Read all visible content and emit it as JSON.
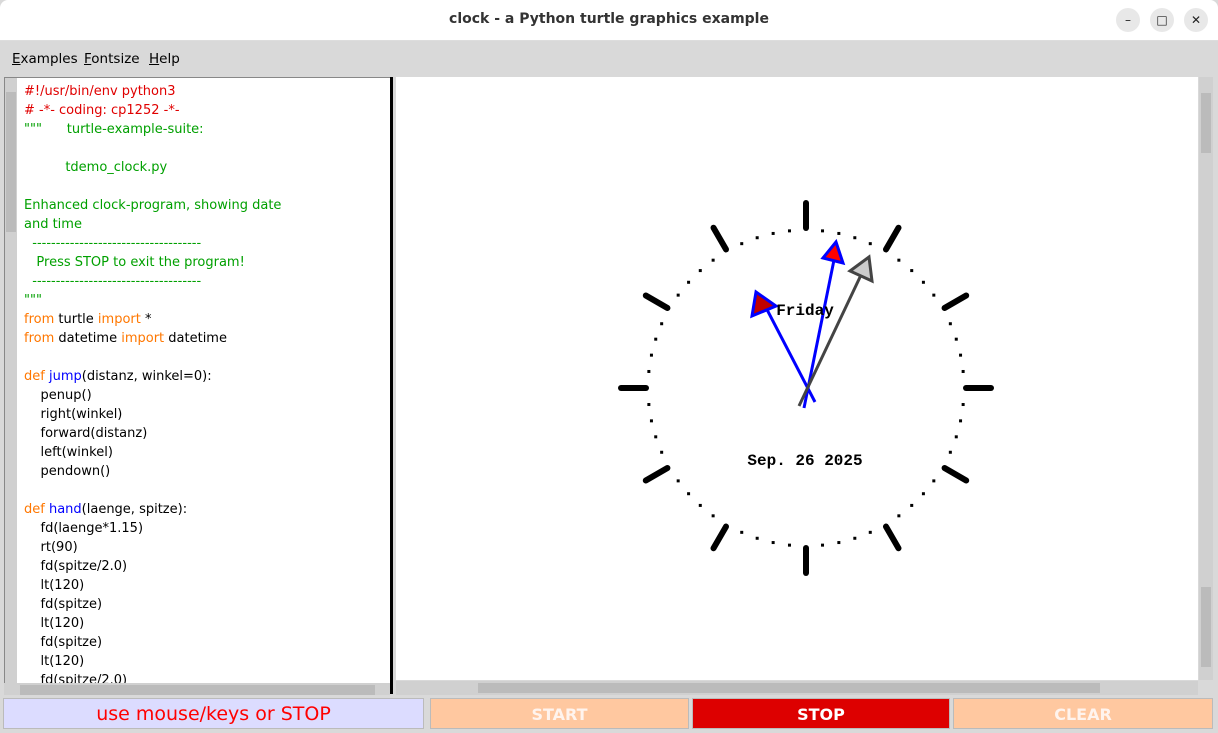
{
  "window": {
    "title": "clock - a Python turtle graphics example",
    "minimize_label": "–",
    "maximize_label": "□",
    "close_label": "✕"
  },
  "menu": {
    "items": [
      {
        "first": "E",
        "rest": "xamples"
      },
      {
        "first": "F",
        "rest": "ontsize"
      },
      {
        "first": "H",
        "rest": "elp"
      }
    ]
  },
  "code": {
    "lines": [
      {
        "t": "#!/usr/bin/env python3",
        "c": "#e00000"
      },
      {
        "t": "# -*- coding: cp1252 -*-",
        "c": "#e00000"
      },
      {
        "t": "\"\"\"      turtle-example-suite:",
        "c": "#00a000"
      },
      {
        "t": "",
        "c": "#000"
      },
      {
        "t": "          tdemo_clock.py",
        "c": "#00a000"
      },
      {
        "t": "",
        "c": "#000"
      },
      {
        "t": "Enhanced clock-program, showing date",
        "c": "#00a000"
      },
      {
        "t": "and time",
        "c": "#00a000"
      },
      {
        "t": "  ------------------------------------",
        "c": "#00a000"
      },
      {
        "t": "   Press STOP to exit the program!",
        "c": "#00a000"
      },
      {
        "t": "  ------------------------------------",
        "c": "#00a000"
      },
      {
        "t": "\"\"\"",
        "c": "#00a000"
      },
      {
        "t": "from turtle import *",
        "c": "#000",
        "kw": true
      },
      {
        "t": "from datetime import datetime",
        "c": "#000",
        "kw": true
      },
      {
        "t": "",
        "c": "#000"
      },
      {
        "t": "def jump(distanz, winkel=0):",
        "c": "#000",
        "def": true
      },
      {
        "t": "    penup()",
        "c": "#000"
      },
      {
        "t": "    right(winkel)",
        "c": "#000"
      },
      {
        "t": "    forward(distanz)",
        "c": "#000"
      },
      {
        "t": "    left(winkel)",
        "c": "#000"
      },
      {
        "t": "    pendown()",
        "c": "#000"
      },
      {
        "t": "",
        "c": "#000"
      },
      {
        "t": "def hand(laenge, spitze):",
        "c": "#000",
        "def": true
      },
      {
        "t": "    fd(laenge*1.15)",
        "c": "#000"
      },
      {
        "t": "    rt(90)",
        "c": "#000"
      },
      {
        "t": "    fd(spitze/2.0)",
        "c": "#000"
      },
      {
        "t": "    lt(120)",
        "c": "#000"
      },
      {
        "t": "    fd(spitze)",
        "c": "#000"
      },
      {
        "t": "    lt(120)",
        "c": "#000"
      },
      {
        "t": "    fd(spitze)",
        "c": "#000"
      },
      {
        "t": "    lt(120)",
        "c": "#000"
      },
      {
        "t": "    fd(spitze/2.0)",
        "c": "#000"
      }
    ]
  },
  "clock": {
    "weekday": "Friday",
    "date": "Sep. 26 2025"
  },
  "buttons": {
    "status": "use mouse/keys or STOP",
    "start": "START",
    "stop": "STOP",
    "clear": "CLEAR"
  },
  "colors": {
    "keyword": "#ff7700",
    "defname": "#0000ff",
    "stop_bg": "#dd0000",
    "inactive_bg": "#ffc8a0",
    "status_bg": "#dcdcff"
  }
}
